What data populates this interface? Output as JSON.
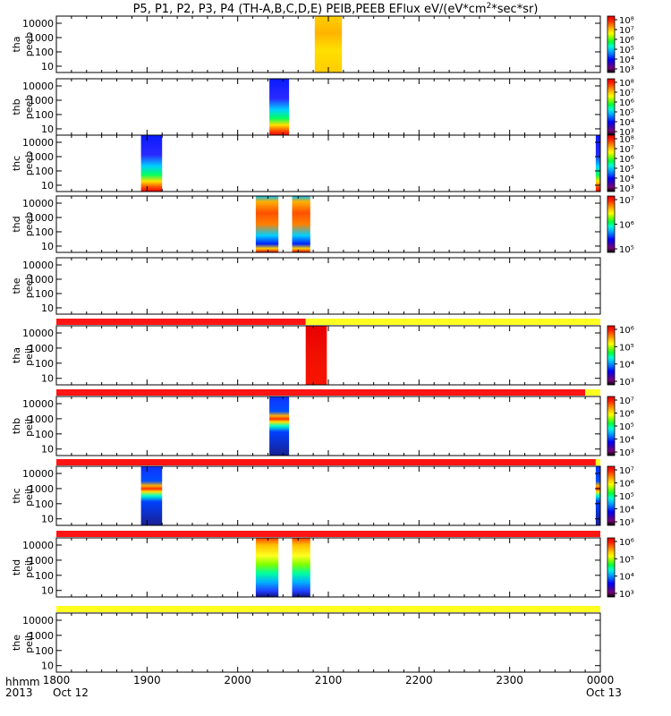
{
  "title": "P5, P1, P2, P3, P4 (TH-A,B,C,D,E) PEIB,PEEB EFlux eV/(eV*cm",
  "title_sup": "2",
  "title_end": "*sec*sr)",
  "colors": {
    "colormap": [
      "#000000",
      "#7a007a",
      "#3a00b0",
      "#0000ff",
      "#0060ff",
      "#00b4ff",
      "#00ffd0",
      "#00ff40",
      "#80ff00",
      "#ffff00",
      "#ffc000",
      "#ff7000",
      "#ff2000",
      "#e00000"
    ],
    "bar_red": "#ff1414",
    "bar_yellow": "#ffff20"
  },
  "chart_data": {
    "type": "heatmap",
    "x_axis": {
      "ticks": [
        "1800",
        "1900",
        "2000",
        "2100",
        "2200",
        "2300",
        "0000"
      ],
      "row_label": "hhmm",
      "year_label": "2013",
      "date_start": "Oct 12",
      "date_end": "Oct 13",
      "range_hhmm": [
        "1800",
        "0000"
      ]
    },
    "panels": [
      {
        "id": "tha-peeb",
        "ylabel1": "tha",
        "ylabel2": "peeb",
        "yticks": [
          "10000",
          "1000",
          "100",
          "10"
        ],
        "cbar": [
          "10⁸",
          "10⁷",
          "10⁶",
          "10⁵",
          "10⁴",
          "10³"
        ],
        "blocks": [
          {
            "t0": "2051",
            "t1": "2109",
            "profile": "ylw"
          }
        ]
      },
      {
        "id": "thb-peeb",
        "ylabel1": "thb",
        "ylabel2": "peeb",
        "yticks": [
          "10000",
          "1000",
          "100",
          "10"
        ],
        "cbar": [
          "10⁸",
          "10⁷",
          "10⁶",
          "10⁵",
          "10⁴",
          "10³"
        ],
        "blocks": [
          {
            "t0": "2021",
            "t1": "2034",
            "profile": "lowred"
          }
        ]
      },
      {
        "id": "thc-peeb",
        "ylabel1": "thc",
        "ylabel2": "peeb",
        "yticks": [
          "10000",
          "1000",
          "100",
          "10"
        ],
        "cbar": [
          "10⁸",
          "10⁷",
          "10⁶",
          "10⁵",
          "10⁴",
          "10³"
        ],
        "blocks": [
          {
            "t0": "1856",
            "t1": "1910",
            "profile": "lowred"
          },
          {
            "t0": "2357",
            "t1": "2400",
            "profile": "lowred"
          }
        ]
      },
      {
        "id": "thd-peeb",
        "ylabel1": "thd",
        "ylabel2": "peeb",
        "yticks": [
          "10000",
          "1000",
          "100",
          "10"
        ],
        "cbar": [
          "10⁷",
          "10⁶",
          "10⁵"
        ],
        "blocks": [
          {
            "t0": "2012",
            "t1": "2027",
            "profile": "mid"
          },
          {
            "t0": "2036",
            "t1": "2048",
            "profile": "mid"
          }
        ]
      },
      {
        "id": "the-peeb",
        "ylabel1": "the",
        "ylabel2": "peeb",
        "yticks": [
          "10000",
          "1000",
          "100",
          "10"
        ],
        "cbar": [],
        "blocks": []
      },
      {
        "id": "tha-peib",
        "ylabel1": "tha",
        "ylabel2": "peib",
        "yticks": [
          "10000",
          "1000",
          "100",
          "10"
        ],
        "cbar": [
          "10⁶",
          "10⁵",
          "10⁴",
          "10³"
        ],
        "bar": [
          {
            "t0": "1800",
            "t1": "2045",
            "c": "red"
          },
          {
            "t0": "2045",
            "t1": "2400",
            "c": "yellow"
          }
        ],
        "blocks": [
          {
            "t0": "2045",
            "t1": "2059",
            "profile": "red"
          }
        ]
      },
      {
        "id": "thb-peib",
        "ylabel1": "thb",
        "ylabel2": "peib",
        "yticks": [
          "10000",
          "1000",
          "100",
          "10"
        ],
        "cbar": [
          "10⁷",
          "10⁶",
          "10⁵",
          "10⁴",
          "10³"
        ],
        "bar": [
          {
            "t0": "1800",
            "t1": "2350",
            "c": "red"
          },
          {
            "t0": "2350",
            "t1": "2400",
            "c": "yellow"
          }
        ],
        "blocks": [
          {
            "t0": "2021",
            "t1": "2034",
            "profile": "ion"
          }
        ]
      },
      {
        "id": "thc-peib",
        "ylabel1": "thc",
        "ylabel2": "peib",
        "yticks": [
          "10000",
          "1000",
          "100",
          "10"
        ],
        "cbar": [
          "10⁷",
          "10⁶",
          "10⁵",
          "10⁴",
          "10³"
        ],
        "bar": [
          {
            "t0": "1800",
            "t1": "2357",
            "c": "red"
          },
          {
            "t0": "2357",
            "t1": "2400",
            "c": "yellow"
          }
        ],
        "blocks": [
          {
            "t0": "1856",
            "t1": "1910",
            "profile": "ion"
          },
          {
            "t0": "2357",
            "t1": "2400",
            "profile": "ion"
          }
        ]
      },
      {
        "id": "thd-peib",
        "ylabel1": "thd",
        "ylabel2": "peib",
        "yticks": [
          "10000",
          "1000",
          "100",
          "10"
        ],
        "cbar": [
          "10⁶",
          "10⁵",
          "10⁴",
          "10³"
        ],
        "bar": [
          {
            "t0": "1800",
            "t1": "2400",
            "c": "red"
          }
        ],
        "blocks": [
          {
            "t0": "2012",
            "t1": "2027",
            "profile": "ion2"
          },
          {
            "t0": "2036",
            "t1": "2048",
            "profile": "ion2"
          }
        ]
      },
      {
        "id": "the-peib",
        "ylabel1": "the",
        "ylabel2": "peib",
        "yticks": [
          "10000",
          "1000",
          "100",
          "10"
        ],
        "cbar": [],
        "bar": [
          {
            "t0": "1800",
            "t1": "2400",
            "c": "yellow"
          }
        ],
        "blocks": []
      }
    ]
  }
}
